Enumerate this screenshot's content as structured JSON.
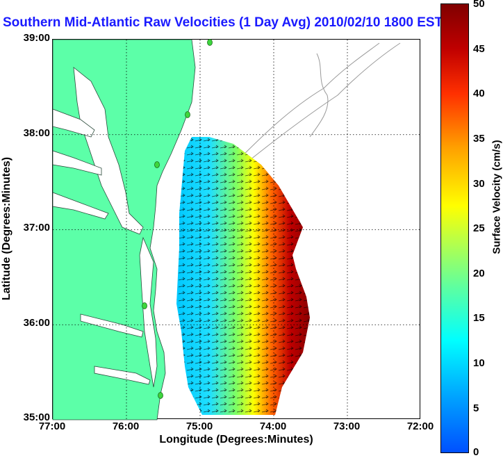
{
  "title": "Southern Mid-Atlantic Raw Velocities (1 Day Avg) 2010/02/10 1800 EST",
  "map": {
    "xlabel": "Longitude (Degrees:Minutes)",
    "ylabel": "Latitude (Degrees:Minutes)",
    "lon_range": [
      -77,
      -72
    ],
    "lat_range": [
      35,
      39
    ],
    "x_ticks": [
      "77:00",
      "76:00",
      "75:00",
      "74:00",
      "73:00",
      "72:00"
    ],
    "y_ticks": [
      "39:00",
      "38:00",
      "37:00",
      "36:00",
      "35:00"
    ],
    "grid": "dotted",
    "land_color": "#5cffa8",
    "station_color": "#3dd63d"
  },
  "colorbar": {
    "label": "Surface Velocity (cm/s)",
    "ticks": [
      "50",
      "45",
      "40",
      "35",
      "30",
      "25",
      "20",
      "15",
      "10",
      "5",
      "0"
    ],
    "range": [
      0,
      50
    ],
    "colormap": "jet"
  }
}
